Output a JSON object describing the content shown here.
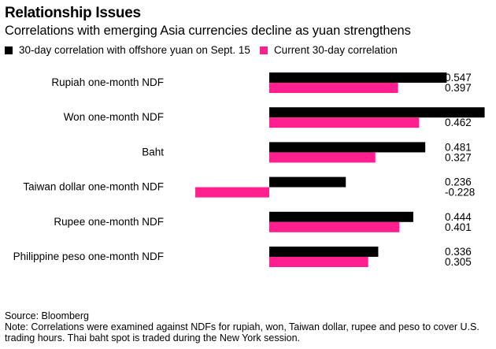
{
  "header": {
    "title": "Relationship Issues",
    "subtitle": "Correlations with emerging Asia currencies decline as yuan strengthens"
  },
  "colors": {
    "sept15": "#000000",
    "current": "#ff1f8e"
  },
  "footer": {
    "source": "Source: Bloomberg",
    "note": "Note: Correlations were examined against NDFs for rupiah, won, Taiwan dollar, rupee and peso to cover U.S. trading hours. Thai baht spot is traded during the New York session."
  },
  "chart_data": {
    "type": "bar",
    "orientation": "horizontal",
    "categories": [
      "Rupiah one-month NDF",
      "Won one-month NDF",
      "Baht",
      "Taiwan dollar one-month NDF",
      "Rupee one-month NDF",
      "Philippine peso one-month NDF"
    ],
    "series": [
      {
        "name": "30-day correlation with offshore yuan on Sept. 15",
        "values": [
          0.547,
          0.664,
          0.481,
          0.236,
          0.444,
          0.336
        ]
      },
      {
        "name": "Current 30-day correlation",
        "values": [
          0.397,
          0.462,
          0.327,
          -0.228,
          0.401,
          0.305
        ]
      }
    ],
    "labels": [
      [
        "0.547",
        "0.397"
      ],
      [
        "",
        "0.462"
      ],
      [
        "0.481",
        "0.327"
      ],
      [
        "0.236",
        "-0.228"
      ],
      [
        "0.444",
        "0.401"
      ],
      [
        "0.336",
        "0.305"
      ]
    ],
    "xlim": [
      -0.228,
      0.664
    ],
    "legend": "top-left",
    "grid": false
  }
}
